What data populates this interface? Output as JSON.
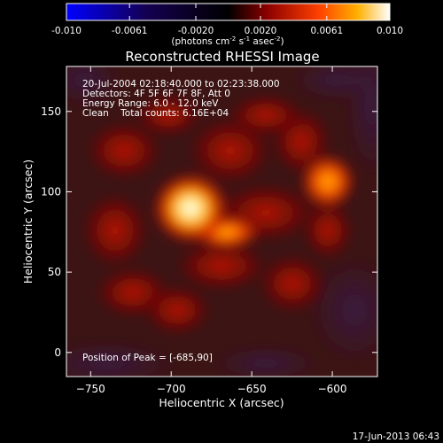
{
  "colorbar": {
    "min": -0.01,
    "max": 0.01,
    "tick_labels": [
      "-0.010",
      "-0.0061",
      "-0.0020",
      "0.0020",
      "0.0061",
      "0.010"
    ],
    "tick_values": [
      -0.01,
      -0.0061,
      -0.002,
      0.002,
      0.0061,
      0.01
    ],
    "unit_prefix": "(photons cm",
    "unit_exp1": "-2",
    "unit_mid": " s",
    "unit_exp2": "-1",
    "unit_mid2": " asec",
    "unit_exp3": "-2",
    "unit_suffix": ")",
    "colors": [
      "#0000ff",
      "#000000",
      "#8b0000",
      "#ff4500",
      "#ffb000",
      "#ffffff"
    ]
  },
  "title": "Reconstructed RHESSI Image",
  "info_lines": [
    "20-Jul-2004 02:18:40.000 to 02:23:38.000",
    "Detectors: 4F 5F 6F 7F 8F, Att 0",
    "Energy Range: 6.0 - 12.0 keV",
    "Clean    Total counts: 6.16E+04"
  ],
  "peak_text": "Position of Peak = [-685,90]",
  "x_axis": {
    "label": "Heliocentric X (arcsec)",
    "range": [
      -765,
      -572
    ],
    "ticks": [
      -750,
      -700,
      -650,
      -600
    ],
    "tick_labels": [
      "−750",
      "−700",
      "−650",
      "−600"
    ]
  },
  "y_axis": {
    "label": "Heliocentric Y (arcsec)",
    "range": [
      -15,
      178
    ],
    "ticks": [
      0,
      50,
      100,
      150
    ],
    "tick_labels": [
      "0",
      "50",
      "100",
      "150"
    ]
  },
  "footer_date": "17-Jun-2013 06:43"
}
